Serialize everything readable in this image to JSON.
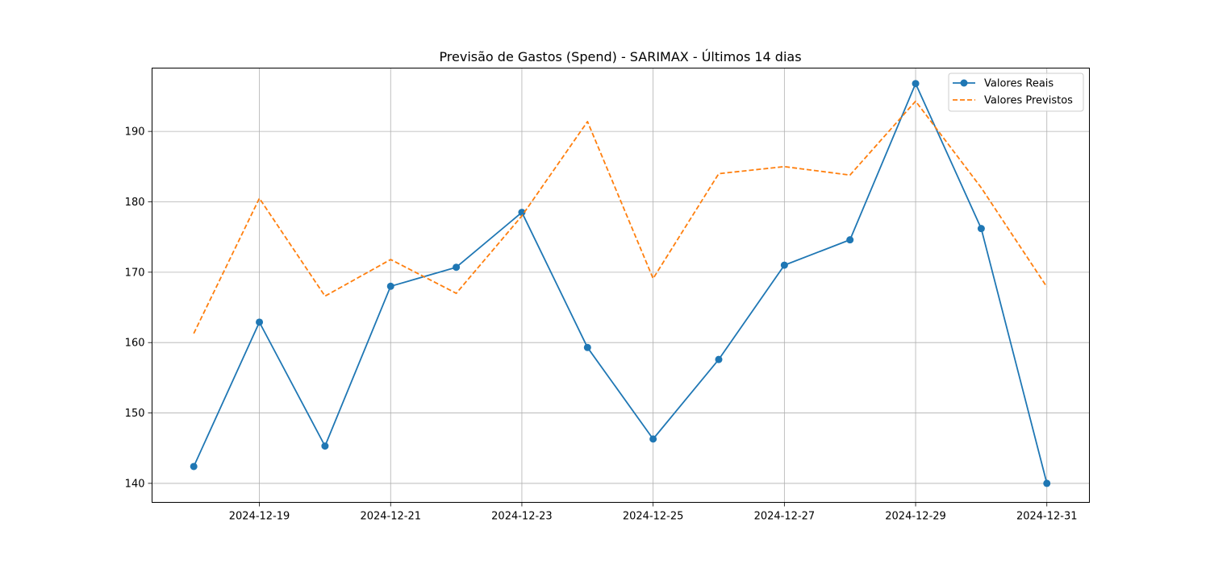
{
  "chart_data": {
    "type": "line",
    "title": "Previsão de Gastos (Spend) - SARIMAX - Últimos 14 dias",
    "xlabel": "",
    "ylabel": "",
    "x": [
      "2024-12-18",
      "2024-12-19",
      "2024-12-20",
      "2024-12-21",
      "2024-12-22",
      "2024-12-23",
      "2024-12-24",
      "2024-12-25",
      "2024-12-26",
      "2024-12-27",
      "2024-12-28",
      "2024-12-29",
      "2024-12-30",
      "2024-12-31"
    ],
    "x_tick_labels": [
      "2024-12-19",
      "2024-12-21",
      "2024-12-23",
      "2024-12-25",
      "2024-12-27",
      "2024-12-29",
      "2024-12-31"
    ],
    "y_tick_labels": [
      "140",
      "150",
      "160",
      "170",
      "180",
      "190"
    ],
    "ylim": [
      137.3,
      199.0
    ],
    "grid": true,
    "legend_position": "top-right",
    "series": [
      {
        "name": "Valores Reais",
        "color": "#1f77b4",
        "style": "solid-with-markers",
        "values": [
          142.4,
          162.9,
          145.3,
          168.0,
          170.7,
          178.5,
          159.3,
          146.3,
          157.6,
          171.0,
          174.6,
          196.8,
          176.2,
          140.0
        ]
      },
      {
        "name": "Valores Previstos",
        "color": "#ff7f0e",
        "style": "dashed",
        "values": [
          161.3,
          180.5,
          166.6,
          171.8,
          167.0,
          178.0,
          191.4,
          169.1,
          184.0,
          185.0,
          183.8,
          194.3,
          182.0,
          167.9
        ]
      }
    ]
  }
}
